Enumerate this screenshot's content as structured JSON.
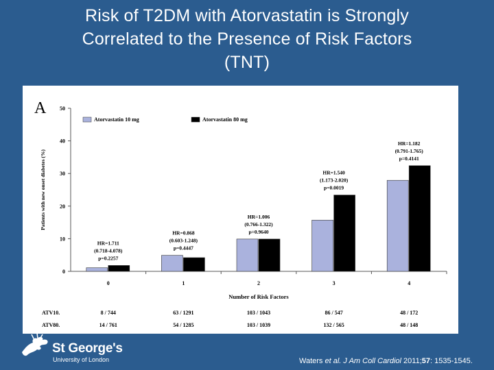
{
  "slide": {
    "title_lines": [
      "Risk of T2DM with Atorvastatin is Strongly",
      "Correlated to the Presence of Risk Factors",
      "(TNT)"
    ]
  },
  "panel_letter": "A",
  "chart_data": {
    "type": "bar",
    "xlabel": "Number of Risk Factors",
    "ylabel": "Patients with new onset diabetes (%)",
    "ylim": [
      0,
      50
    ],
    "yticks": [
      0,
      10,
      20,
      30,
      40,
      50
    ],
    "categories": [
      "0",
      "1",
      "2",
      "3",
      "4"
    ],
    "series": [
      {
        "name": "Atorvastatin 10 mg",
        "color": "#aab2dd",
        "values": [
          1.1,
          4.9,
          9.9,
          15.7,
          27.9
        ]
      },
      {
        "name": "Atorvastatin 80 mg",
        "color": "#000000",
        "values": [
          1.8,
          4.2,
          9.9,
          23.4,
          32.4
        ]
      }
    ],
    "legend": "top-left",
    "grid": false,
    "annotations": [
      {
        "category": "0",
        "lines": [
          "HR=1.711",
          "(0.718-4.078)",
          "p=0.2257"
        ]
      },
      {
        "category": "1",
        "lines": [
          "HR=0.868",
          "(0.603-1.248)",
          "p=0.4447"
        ]
      },
      {
        "category": "2",
        "lines": [
          "HR=1.006",
          "(0.766-1.322)",
          "p=0.9640"
        ]
      },
      {
        "category": "3",
        "lines": [
          "HR=1.540",
          "(1.173-2.020)",
          "p=0.0019"
        ]
      },
      {
        "category": "4",
        "lines": [
          "HR=1.182",
          "(0.791-1.765)",
          "p=0.4141"
        ]
      }
    ],
    "counts_table": {
      "rows": [
        {
          "label": "ATV10.",
          "values": [
            "8 / 744",
            "63 / 1291",
            "103 / 1043",
            "86 / 547",
            "48 / 172"
          ]
        },
        {
          "label": "ATV80.",
          "values": [
            "14 / 761",
            "54 / 1285",
            "103 / 1039",
            "132 / 565",
            "48 / 148"
          ]
        }
      ]
    }
  },
  "logo": {
    "name": "St George's",
    "sub": "University of London"
  },
  "citation": {
    "authors": "Waters ",
    "etal": "et al.",
    "journal": " J Am Coll Cardiol",
    "year": " 2011;",
    "volume": "57",
    "pages": ": 1535-1545."
  }
}
